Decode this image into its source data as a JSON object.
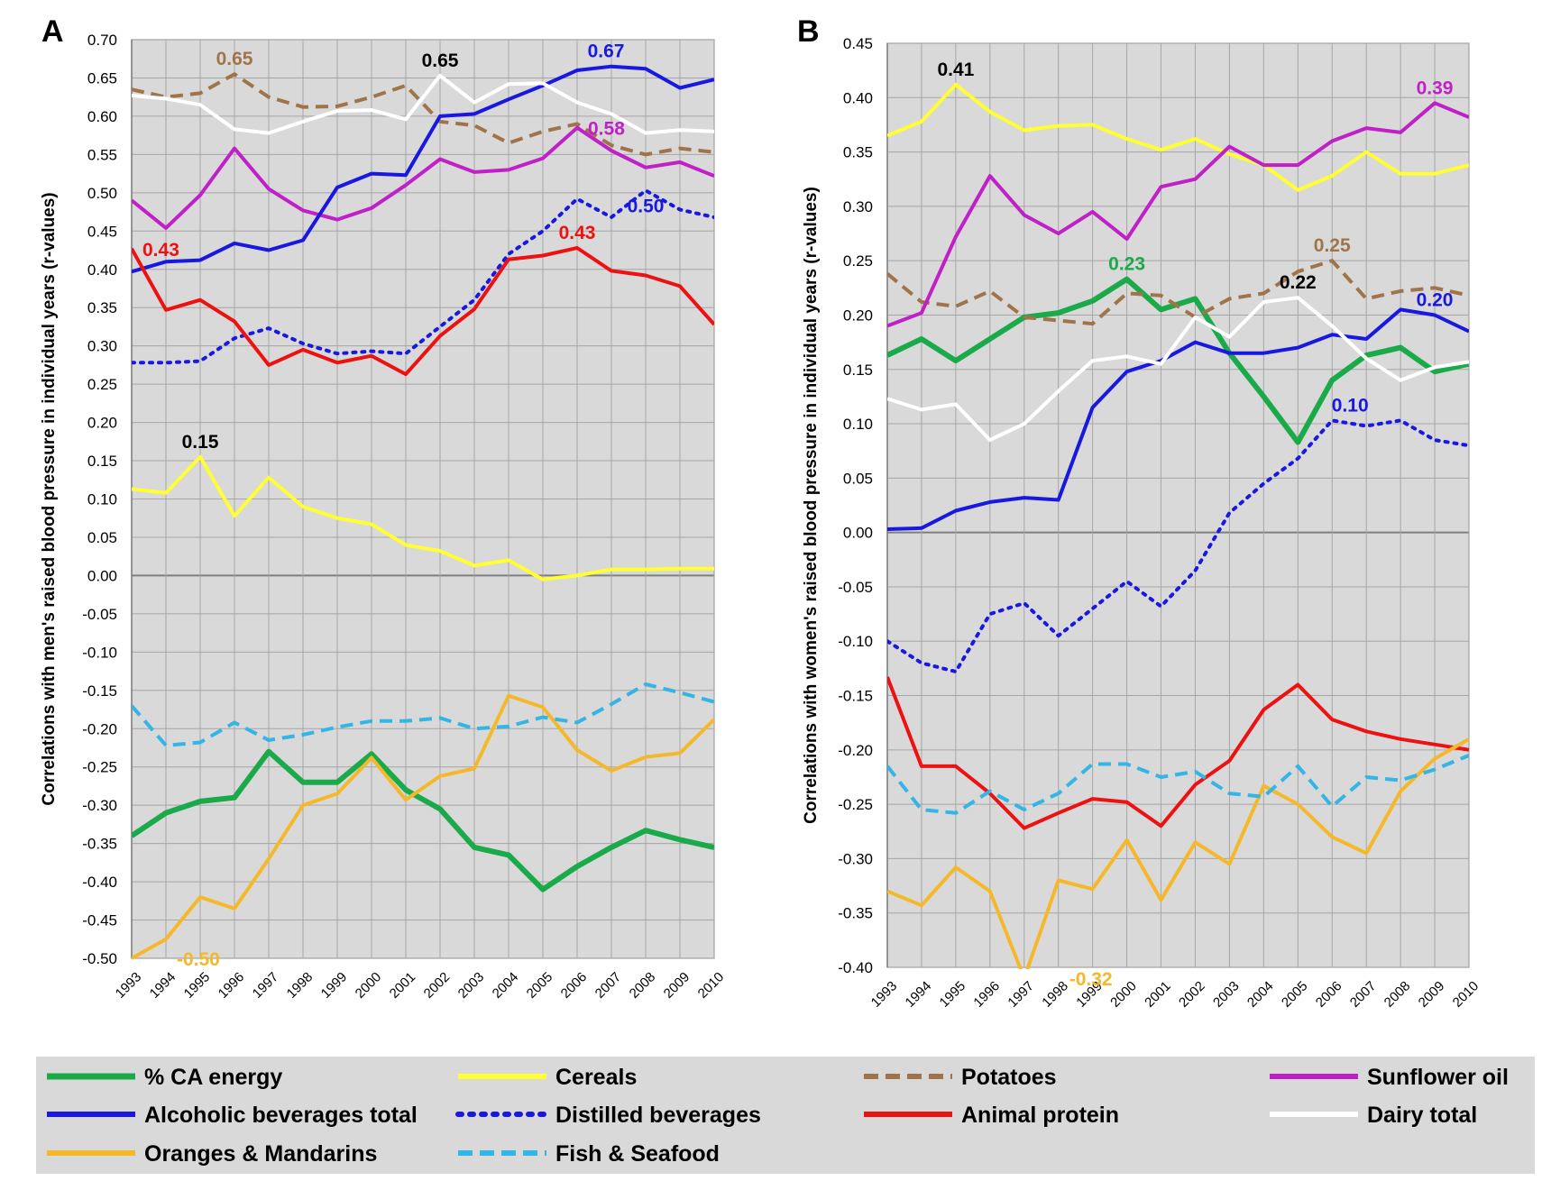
{
  "chart_data": {
    "type": "line",
    "series_styles": [
      {
        "name": "% CA energy",
        "color": "#1aaa4a",
        "dash": "solid",
        "width": 6
      },
      {
        "name": "Cereals",
        "color": "#ffff33",
        "dash": "solid",
        "width": 4
      },
      {
        "name": "Potatoes",
        "color": "#a0744a",
        "dash": "dashed",
        "width": 4
      },
      {
        "name": "Sunflower oil",
        "color": "#c020c8",
        "dash": "solid",
        "width": 4
      },
      {
        "name": "Alcoholic beverages total",
        "color": "#1818e0",
        "dash": "solid",
        "width": 4
      },
      {
        "name": "Distilled beverages",
        "color": "#1818e0",
        "dash": "dotted",
        "width": 4
      },
      {
        "name": "Animal protein",
        "color": "#ee1111",
        "dash": "solid",
        "width": 4
      },
      {
        "name": "Dairy total",
        "color": "#ffffff",
        "dash": "solid",
        "width": 4
      },
      {
        "name": "Oranges & Mandarins",
        "color": "#f5b82a",
        "dash": "solid",
        "width": 4
      },
      {
        "name": "Fish & Seafood",
        "color": "#33b5e5",
        "dash": "dashed",
        "width": 4
      }
    ],
    "legend": {
      "placement": "bottom",
      "rows": [
        [
          "% CA energy",
          "Cereals",
          "Potatoes",
          "Sunflower oil"
        ],
        [
          "Alcoholic beverages total",
          "Distilled beverages",
          "Animal protein",
          "Dairy total"
        ],
        [
          "Oranges & Mandarins",
          "Fish & Seafood"
        ]
      ]
    },
    "panels": [
      {
        "letter": "A",
        "ylabel": "Correlations with men's raised blood pressure in individual years (r-values)",
        "ylim": [
          -0.5,
          0.7
        ],
        "ytick_step": 0.05,
        "yticks": [
          "0.70",
          "0.65",
          "0.60",
          "0.55",
          "0.50",
          "0.45",
          "0.40",
          "0.35",
          "0.30",
          "0.25",
          "0.20",
          "0.15",
          "0.10",
          "0.05",
          "0.00",
          "-0.05",
          "-0.10",
          "-0.15",
          "-0.20",
          "-0.25",
          "-0.30",
          "-0.35",
          "-0.40",
          "-0.45",
          "-0.50"
        ],
        "x": [
          "1993",
          "1994",
          "1995",
          "1996",
          "1997",
          "1998",
          "1999",
          "2000",
          "2001",
          "2002",
          "2003",
          "2004",
          "2005",
          "2006",
          "2007",
          "2008",
          "2009",
          "2010"
        ],
        "grid": true,
        "series": [
          {
            "name": "% CA energy",
            "values": [
              -0.34,
              -0.31,
              -0.295,
              -0.29,
              -0.23,
              -0.27,
              -0.27,
              -0.233,
              -0.28,
              -0.305,
              -0.355,
              -0.365,
              -0.41,
              -0.38,
              -0.355,
              -0.333,
              -0.345,
              -0.355
            ]
          },
          {
            "name": "Cereals",
            "values": [
              0.113,
              0.108,
              0.155,
              0.078,
              0.128,
              0.09,
              0.075,
              0.067,
              0.04,
              0.032,
              0.013,
              0.02,
              -0.005,
              0,
              0.008,
              0.008,
              0.009,
              0.009
            ]
          },
          {
            "name": "Potatoes",
            "values": [
              0.635,
              0.625,
              0.63,
              0.655,
              0.625,
              0.612,
              0.613,
              0.625,
              0.64,
              0.593,
              0.588,
              0.565,
              0.58,
              0.59,
              0.562,
              0.55,
              0.558,
              0.553
            ]
          },
          {
            "name": "Sunflower oil",
            "values": [
              0.49,
              0.454,
              0.497,
              0.558,
              0.505,
              0.477,
              0.465,
              0.48,
              0.51,
              0.544,
              0.527,
              0.53,
              0.545,
              0.585,
              0.555,
              0.533,
              0.54,
              0.522
            ]
          },
          {
            "name": "Alcoholic beverages total",
            "values": [
              0.397,
              0.41,
              0.412,
              0.434,
              0.425,
              0.438,
              0.507,
              0.525,
              0.523,
              0.6,
              0.603,
              0.622,
              0.64,
              0.66,
              0.665,
              0.662,
              0.637,
              0.648
            ]
          },
          {
            "name": "Distilled beverages",
            "values": [
              0.278,
              0.278,
              0.28,
              0.31,
              0.323,
              0.303,
              0.29,
              0.293,
              0.29,
              0.325,
              0.36,
              0.42,
              0.45,
              0.492,
              0.468,
              0.503,
              0.478,
              0.468
            ]
          },
          {
            "name": "Animal protein",
            "values": [
              0.427,
              0.347,
              0.36,
              0.332,
              0.275,
              0.295,
              0.278,
              0.287,
              0.263,
              0.313,
              0.348,
              0.413,
              0.418,
              0.428,
              0.398,
              0.392,
              0.378,
              0.328
            ]
          },
          {
            "name": "Dairy total",
            "values": [
              0.627,
              0.623,
              0.615,
              0.583,
              0.578,
              0.593,
              0.607,
              0.608,
              0.596,
              0.653,
              0.618,
              0.642,
              0.643,
              0.618,
              0.603,
              0.578,
              0.582,
              0.58
            ]
          },
          {
            "name": "Oranges & Mandarins",
            "values": [
              -0.5,
              -0.475,
              -0.42,
              -0.435,
              -0.37,
              -0.3,
              -0.285,
              -0.238,
              -0.293,
              -0.262,
              -0.252,
              -0.157,
              -0.172,
              -0.228,
              -0.255,
              -0.237,
              -0.232,
              -0.188
            ]
          },
          {
            "name": "Fish & Seafood",
            "values": [
              -0.17,
              -0.222,
              -0.218,
              -0.192,
              -0.215,
              -0.208,
              -0.198,
              -0.19,
              -0.19,
              -0.186,
              -0.2,
              -0.197,
              -0.185,
              -0.192,
              -0.168,
              -0.142,
              -0.153,
              -0.165
            ]
          }
        ],
        "annotations": [
          {
            "text": "0.65",
            "x": "1996",
            "y": 0.655,
            "color": "#a0744a",
            "pos": "above"
          },
          {
            "text": "0.65",
            "x": "2002",
            "y": 0.653,
            "color": "#000000",
            "pos": "above"
          },
          {
            "text": "0.67",
            "x": "2007",
            "y": 0.665,
            "color": "#1818e0",
            "pos": "above-left"
          },
          {
            "text": "0.58",
            "x": "2006",
            "y": 0.585,
            "color": "#c020c8",
            "pos": "right"
          },
          {
            "text": "0.43",
            "x": "1993",
            "y": 0.427,
            "color": "#ee1111",
            "pos": "right"
          },
          {
            "text": "0.43",
            "x": "2006",
            "y": 0.428,
            "color": "#ee1111",
            "pos": "above"
          },
          {
            "text": "0.50",
            "x": "2008",
            "y": 0.503,
            "color": "#1818e0",
            "pos": "below"
          },
          {
            "text": "0.15",
            "x": "1995",
            "y": 0.155,
            "color": "#000000",
            "pos": "above"
          },
          {
            "text": "-0.50",
            "x": "1994",
            "y": -0.5,
            "color": "#f5b82a",
            "pos": "right"
          }
        ]
      },
      {
        "letter": "B",
        "ylabel": "Correlations with women's raised blood pressure in individual years (r-values)",
        "ylim": [
          -0.4,
          0.45
        ],
        "ytick_step": 0.05,
        "yticks": [
          "0.45",
          "0.40",
          "0.35",
          "0.30",
          "0.25",
          "0.20",
          "0.15",
          "0.10",
          "0.05",
          "0.00",
          "-0.05",
          "-0.10",
          "-0.15",
          "-0.20",
          "-0.25",
          "-0.30",
          "-0.35",
          "-0.40"
        ],
        "x": [
          "1993",
          "1994",
          "1995",
          "1996",
          "1997",
          "1998",
          "1999",
          "2000",
          "2001",
          "2002",
          "2003",
          "2004",
          "2005",
          "2006",
          "2007",
          "2008",
          "2009",
          "2010"
        ],
        "grid": true,
        "series": [
          {
            "name": "% CA energy",
            "values": [
              0.163,
              0.178,
              0.158,
              0.178,
              0.198,
              0.202,
              0.213,
              0.233,
              0.205,
              0.215,
              0.165,
              0.125,
              0.083,
              0.14,
              0.163,
              0.17,
              0.148,
              0.155
            ]
          },
          {
            "name": "Cereals",
            "values": [
              0.365,
              0.378,
              0.412,
              0.387,
              0.37,
              0.374,
              0.375,
              0.362,
              0.352,
              0.362,
              0.348,
              0.338,
              0.315,
              0.328,
              0.35,
              0.33,
              0.33,
              0.338
            ]
          },
          {
            "name": "Potatoes",
            "values": [
              0.238,
              0.212,
              0.208,
              0.222,
              0.198,
              0.195,
              0.192,
              0.22,
              0.218,
              0.198,
              0.215,
              0.22,
              0.24,
              0.25,
              0.215,
              0.222,
              0.225,
              0.218
            ]
          },
          {
            "name": "Sunflower oil",
            "values": [
              0.19,
              0.202,
              0.272,
              0.328,
              0.292,
              0.275,
              0.295,
              0.27,
              0.318,
              0.325,
              0.355,
              0.338,
              0.338,
              0.36,
              0.372,
              0.368,
              0.395,
              0.382
            ]
          },
          {
            "name": "Alcoholic beverages total",
            "values": [
              0.003,
              0.004,
              0.02,
              0.028,
              0.032,
              0.03,
              0.115,
              0.148,
              0.158,
              0.175,
              0.165,
              0.165,
              0.17,
              0.182,
              0.178,
              0.205,
              0.2,
              0.185
            ]
          },
          {
            "name": "Distilled beverages",
            "values": [
              -0.1,
              -0.12,
              -0.128,
              -0.075,
              -0.065,
              -0.095,
              -0.07,
              -0.045,
              -0.068,
              -0.035,
              0.018,
              0.045,
              0.068,
              0.103,
              0.098,
              0.103,
              0.085,
              0.08
            ]
          },
          {
            "name": "Animal protein",
            "values": [
              -0.133,
              -0.215,
              -0.215,
              -0.24,
              -0.272,
              -0.258,
              -0.245,
              -0.248,
              -0.27,
              -0.232,
              -0.21,
              -0.163,
              -0.14,
              -0.172,
              -0.183,
              -0.19,
              -0.195,
              -0.2
            ]
          },
          {
            "name": "Dairy total",
            "values": [
              0.123,
              0.113,
              0.118,
              0.085,
              0.1,
              0.13,
              0.158,
              0.162,
              0.155,
              0.198,
              0.18,
              0.212,
              0.216,
              0.19,
              0.16,
              0.14,
              0.152,
              0.157
            ]
          },
          {
            "name": "Oranges & Mandarins",
            "values": [
              -0.33,
              -0.343,
              -0.308,
              -0.33,
              -0.41,
              -0.32,
              -0.328,
              -0.283,
              -0.338,
              -0.285,
              -0.305,
              -0.233,
              -0.25,
              -0.28,
              -0.295,
              -0.238,
              -0.208,
              -0.19
            ]
          },
          {
            "name": "Fish & Seafood",
            "values": [
              -0.215,
              -0.255,
              -0.258,
              -0.238,
              -0.255,
              -0.24,
              -0.213,
              -0.213,
              -0.225,
              -0.22,
              -0.24,
              -0.243,
              -0.215,
              -0.252,
              -0.225,
              -0.228,
              -0.218,
              -0.205
            ]
          }
        ],
        "annotations": [
          {
            "text": "0.41",
            "x": "1995",
            "y": 0.412,
            "color": "#000000",
            "pos": "above"
          },
          {
            "text": "0.39",
            "x": "2009",
            "y": 0.395,
            "color": "#c020c8",
            "pos": "above"
          },
          {
            "text": "0.25",
            "x": "2006",
            "y": 0.25,
            "color": "#a0744a",
            "pos": "above"
          },
          {
            "text": "0.23",
            "x": "2000",
            "y": 0.233,
            "color": "#1aaa4a",
            "pos": "above"
          },
          {
            "text": "0.22",
            "x": "2005",
            "y": 0.216,
            "color": "#000000",
            "pos": "above"
          },
          {
            "text": "0.20",
            "x": "2009",
            "y": 0.2,
            "color": "#1818e0",
            "pos": "above"
          },
          {
            "text": "0.10",
            "x": "2006",
            "y": 0.103,
            "color": "#1818e0",
            "pos": "above-right"
          },
          {
            "text": "-0.32",
            "x": "1998",
            "y": -0.41,
            "color": "#f5b82a",
            "pos": "right"
          }
        ]
      }
    ]
  }
}
